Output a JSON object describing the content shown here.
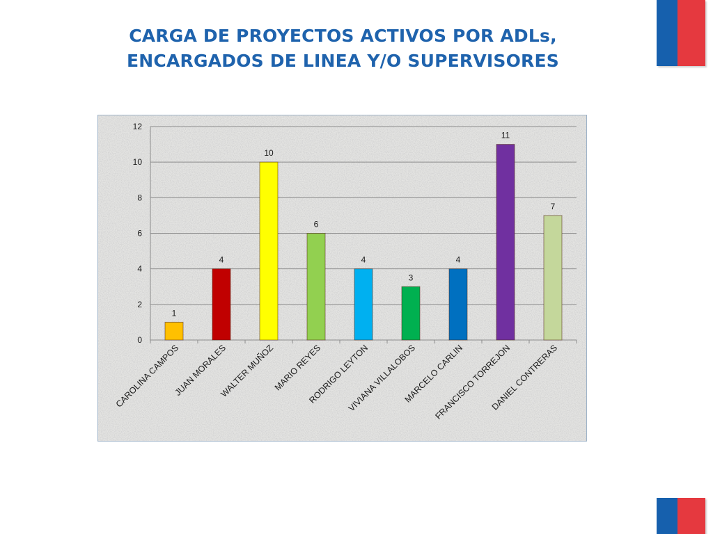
{
  "slide": {
    "title_lines": [
      "CARGA DE PROYECTOS ACTIVOS POR ADLs,",
      "ENCARGADOS DE LINEA Y/O SUPERVISORES"
    ]
  },
  "colors": {
    "title": "#1f63ad",
    "flag_blue": "#1660ad",
    "flag_red": "#e5393f"
  },
  "chart_data": {
    "type": "bar",
    "title": "",
    "xlabel": "",
    "ylabel": "",
    "categories": [
      "CAROLINA CAMPOS",
      "JUAN MORALES",
      "WALTER MUÑOZ",
      "MARIO REYES",
      "RODRIGO LEYTON",
      "VIVIANA VILLALOBOS",
      "MARCELO CARLIN",
      "FRANCISCO TORREJON",
      "DANIEL CONTRERAS"
    ],
    "values": [
      1,
      4,
      10,
      6,
      4,
      3,
      4,
      11,
      7
    ],
    "bar_colors": [
      "#ffc000",
      "#c00000",
      "#ffff00",
      "#92d050",
      "#00b0f0",
      "#00b050",
      "#0070c0",
      "#7030a0",
      "#c4d79b"
    ],
    "ylim": [
      0,
      12
    ],
    "yticks": [
      0,
      2,
      4,
      6,
      8,
      10,
      12
    ],
    "grid": true,
    "legend": "none",
    "data_labels": true
  }
}
